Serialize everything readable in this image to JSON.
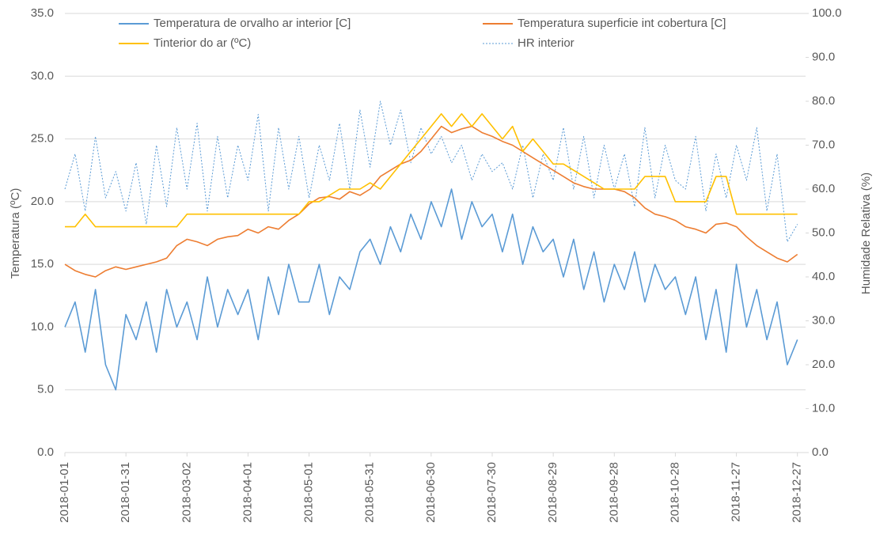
{
  "chart_data": {
    "type": "line",
    "x": [
      "2018-01-01",
      "2018-01-06",
      "2018-01-11",
      "2018-01-16",
      "2018-01-21",
      "2018-01-26",
      "2018-01-31",
      "2018-02-05",
      "2018-02-10",
      "2018-02-15",
      "2018-02-20",
      "2018-02-25",
      "2018-03-02",
      "2018-03-07",
      "2018-03-12",
      "2018-03-17",
      "2018-03-22",
      "2018-03-27",
      "2018-04-01",
      "2018-04-06",
      "2018-04-11",
      "2018-04-16",
      "2018-04-21",
      "2018-04-26",
      "2018-05-01",
      "2018-05-06",
      "2018-05-11",
      "2018-05-16",
      "2018-05-21",
      "2018-05-26",
      "2018-05-31",
      "2018-06-05",
      "2018-06-10",
      "2018-06-15",
      "2018-06-20",
      "2018-06-25",
      "2018-06-30",
      "2018-07-05",
      "2018-07-10",
      "2018-07-15",
      "2018-07-20",
      "2018-07-25",
      "2018-07-30",
      "2018-08-04",
      "2018-08-09",
      "2018-08-14",
      "2018-08-19",
      "2018-08-24",
      "2018-08-29",
      "2018-09-03",
      "2018-09-08",
      "2018-09-13",
      "2018-09-18",
      "2018-09-23",
      "2018-09-28",
      "2018-10-03",
      "2018-10-08",
      "2018-10-13",
      "2018-10-18",
      "2018-10-23",
      "2018-10-28",
      "2018-11-02",
      "2018-11-07",
      "2018-11-12",
      "2018-11-17",
      "2018-11-22",
      "2018-11-27",
      "2018-12-02",
      "2018-12-07",
      "2018-12-12",
      "2018-12-17",
      "2018-12-22",
      "2018-12-27"
    ],
    "series": [
      {
        "name": "Temperatura de orvalho ar interior [C]",
        "color": "#5b9bd5",
        "axis": "y",
        "values": [
          10,
          12,
          8,
          13,
          7,
          5,
          11,
          9,
          12,
          8,
          13,
          10,
          12,
          9,
          14,
          10,
          13,
          11,
          13,
          9,
          14,
          11,
          15,
          12,
          12,
          15,
          11,
          14,
          13,
          16,
          17,
          15,
          18,
          16,
          19,
          17,
          20,
          18,
          21,
          17,
          20,
          18,
          19,
          16,
          19,
          15,
          18,
          16,
          17,
          14,
          17,
          13,
          16,
          12,
          15,
          13,
          16,
          12,
          15,
          13,
          14,
          11,
          14,
          9,
          13,
          8,
          15,
          10,
          13,
          9,
          12,
          7,
          9
        ]
      },
      {
        "name": "Temperatura superficie int cobertura [C]",
        "color": "#ed7d31",
        "axis": "y",
        "values": [
          15,
          14.5,
          14.2,
          14,
          14.5,
          14.8,
          14.6,
          14.8,
          15,
          15.2,
          15.5,
          16.5,
          17,
          16.8,
          16.5,
          17,
          17.2,
          17.3,
          17.8,
          17.5,
          18,
          17.8,
          18.5,
          19,
          19.8,
          20.3,
          20.4,
          20.2,
          20.8,
          20.5,
          21,
          22,
          22.5,
          23,
          23.3,
          24,
          25,
          26,
          25.5,
          25.8,
          26,
          25.5,
          25.2,
          24.8,
          24.5,
          24,
          23.5,
          23,
          22.5,
          22,
          21.5,
          21.2,
          21,
          21,
          21,
          20.8,
          20.3,
          19.5,
          19,
          18.8,
          18.5,
          18,
          17.8,
          17.5,
          18.2,
          18.3,
          18,
          17.2,
          16.5,
          16,
          15.5,
          15.2,
          15.8
        ]
      },
      {
        "name": "Tinterior do ar (ºC)",
        "color": "#ffc000",
        "axis": "y",
        "values": [
          18,
          18,
          19,
          18,
          18,
          18,
          18,
          18,
          18,
          18,
          18,
          18,
          19,
          19,
          19,
          19,
          19,
          19,
          19,
          19,
          19,
          19,
          19,
          19,
          20,
          20,
          20.5,
          21,
          21,
          21,
          21.5,
          21,
          22,
          23,
          24,
          25,
          26,
          27,
          26,
          27,
          26,
          27,
          26,
          25,
          26,
          24,
          25,
          24,
          23,
          23,
          22.5,
          22,
          21.5,
          21,
          21,
          21,
          21,
          22,
          22,
          22,
          20,
          20,
          20,
          20,
          22,
          22,
          19,
          19,
          19,
          19,
          19,
          19,
          19
        ]
      },
      {
        "name": "HR interior",
        "color": "#5b9bd5",
        "axis": "y2",
        "dashed": true,
        "values": [
          60,
          68,
          55,
          72,
          58,
          64,
          55,
          66,
          52,
          70,
          56,
          74,
          60,
          75,
          55,
          72,
          58,
          70,
          62,
          77,
          55,
          74,
          60,
          72,
          58,
          70,
          62,
          75,
          60,
          78,
          65,
          80,
          70,
          78,
          66,
          74,
          68,
          72,
          66,
          70,
          62,
          68,
          64,
          66,
          60,
          70,
          58,
          68,
          62,
          74,
          60,
          72,
          58,
          70,
          60,
          68,
          56,
          74,
          58,
          70,
          62,
          60,
          72,
          55,
          68,
          58,
          70,
          62,
          74,
          55,
          68,
          48,
          52
        ]
      }
    ],
    "xlim": [
      "2018-01-01",
      "2018-12-31"
    ],
    "xticks": [
      "2018-01-01",
      "2018-01-31",
      "2018-03-02",
      "2018-04-01",
      "2018-05-01",
      "2018-05-31",
      "2018-06-30",
      "2018-07-30",
      "2018-08-29",
      "2018-09-28",
      "2018-10-28",
      "2018-11-27",
      "2018-12-27"
    ],
    "ylim": [
      0,
      35
    ],
    "yticks": [
      {
        "value": 0,
        "label": "0.0"
      },
      {
        "value": 5,
        "label": "5.0"
      },
      {
        "value": 10,
        "label": "10.0"
      },
      {
        "value": 15,
        "label": "15.0"
      },
      {
        "value": 20,
        "label": "20.0"
      },
      {
        "value": 25,
        "label": "25.0"
      },
      {
        "value": 30,
        "label": "30.0"
      },
      {
        "value": 35,
        "label": "35.0"
      }
    ],
    "y2lim": [
      0,
      100
    ],
    "y2ticks": [
      {
        "value": 0,
        "label": "0.0"
      },
      {
        "value": 10,
        "label": "10.0"
      },
      {
        "value": 20,
        "label": "20.0"
      },
      {
        "value": 30,
        "label": "30.0"
      },
      {
        "value": 40,
        "label": "40.0"
      },
      {
        "value": 50,
        "label": "50.0"
      },
      {
        "value": 60,
        "label": "60.0"
      },
      {
        "value": 70,
        "label": "70.0"
      },
      {
        "value": 80,
        "label": "80.0"
      },
      {
        "value": 90,
        "label": "90.0"
      },
      {
        "value": 100,
        "label": "100.0"
      }
    ],
    "ylabel": "Temperatura (ºC)",
    "y2label": "Humidade Relativa (%)",
    "grid": true
  }
}
